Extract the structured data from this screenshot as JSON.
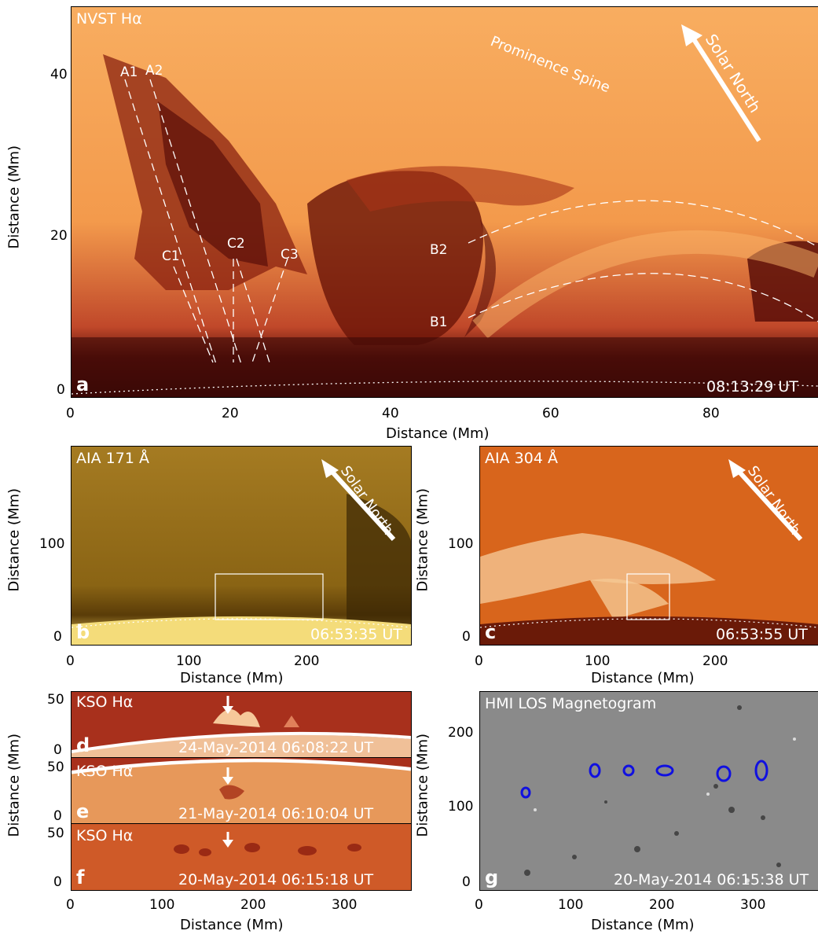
{
  "panels": {
    "a": {
      "letter": "a",
      "title": "NVST Hα",
      "time": "08:13:29 UT",
      "xlabel": "Distance (Mm)",
      "ylabel": "Distance (Mm)",
      "xticks": [
        "0",
        "20",
        "40",
        "60",
        "80"
      ],
      "yticks": [
        "0",
        "20",
        "40"
      ],
      "labels": {
        "A1": "A1",
        "A2": "A2",
        "B1": "B1",
        "B2": "B2",
        "C1": "C1",
        "C2": "C2",
        "C3": "C3",
        "spine": "Prominence Spine",
        "north": "Solar North"
      }
    },
    "b": {
      "letter": "b",
      "title": "AIA 171 Å",
      "time": "06:53:35 UT",
      "xlabel": "Distance (Mm)",
      "ylabel": "Distance (Mm)",
      "xticks": [
        "0",
        "100",
        "200"
      ],
      "yticks": [
        "0",
        "100"
      ],
      "north": "Solar North"
    },
    "c": {
      "letter": "c",
      "title": "AIA 304 Å",
      "time": "06:53:55 UT",
      "xlabel": "Distance (Mm)",
      "ylabel": "Distance (Mm)",
      "xticks": [
        "0",
        "100",
        "200"
      ],
      "yticks": [
        "0",
        "100"
      ],
      "north": "Solar North"
    },
    "d": {
      "letter": "d",
      "title": "KSO Hα",
      "time": "24-May-2014 06:08:22 UT",
      "yticks": [
        "0",
        "50"
      ]
    },
    "e": {
      "letter": "e",
      "title": "KSO Hα",
      "time": "21-May-2014 06:10:04 UT",
      "yticks": [
        "0",
        "50"
      ]
    },
    "f": {
      "letter": "f",
      "title": "KSO Hα",
      "time": "20-May-2014 06:15:18 UT",
      "yticks": [
        "0",
        "50"
      ]
    },
    "def": {
      "xlabel": "Distance (Mm)",
      "ylabel": "Distance (Mm)",
      "xticks": [
        "0",
        "100",
        "200",
        "300"
      ]
    },
    "g": {
      "letter": "g",
      "title": "HMI LOS Magnetogram",
      "time": "20-May-2014 06:15:38 UT",
      "xlabel": "Distance (Mm)",
      "ylabel": "Distance (Mm)",
      "xticks": [
        "0",
        "100",
        "200",
        "300"
      ],
      "yticks": [
        "0",
        "100",
        "200"
      ]
    }
  },
  "colors": {
    "ha_bright": "#f7a85a",
    "ha_dark": "#5a0e08",
    "aia171": "#b88a2a",
    "aia304": "#d9661c",
    "kso": "#c9502a",
    "hmi_gray": "#8a8a8a",
    "contour": "#1010e0"
  }
}
